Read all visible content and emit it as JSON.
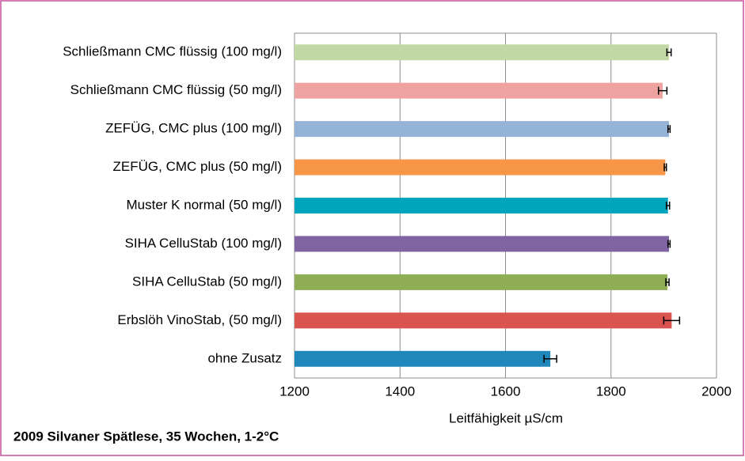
{
  "chart_data": {
    "type": "hbar",
    "title": "2009 Silvaner Spätlese, 35 Wochen, 1-2°C",
    "x_label": "Leitfähigkeit µS/cm",
    "categories": [
      "Schließmann CMC flüssig (100 mg/l)",
      "Schließmann CMC flüssig (50 mg/l)",
      "ZEFÜG, CMC plus  (100 mg/l)",
      "ZEFÜG, CMC plus  (50 mg/l)",
      "Muster K normal (50 mg/l)",
      "SIHA CelluStab (100 mg/l)",
      "SIHA CelluStab (50 mg/l)",
      "Erbslöh VinoStab, (50 mg/l)",
      "ohne Zusatz"
    ],
    "values": [
      1910,
      1898,
      1910,
      1903,
      1908,
      1910,
      1907,
      1915,
      1685
    ],
    "errors": [
      4,
      8,
      2,
      2,
      3,
      2,
      3,
      15,
      12
    ],
    "colors": [
      "#c3d9a5",
      "#efa3a0",
      "#95b3d7",
      "#f79646",
      "#00a5bd",
      "#8064a2",
      "#8fad55",
      "#d9534f",
      "#1f87bb"
    ],
    "xlim": [
      1200,
      2000
    ],
    "xticks": [
      1200,
      1400,
      1600,
      1800,
      2000
    ],
    "grid": true
  }
}
